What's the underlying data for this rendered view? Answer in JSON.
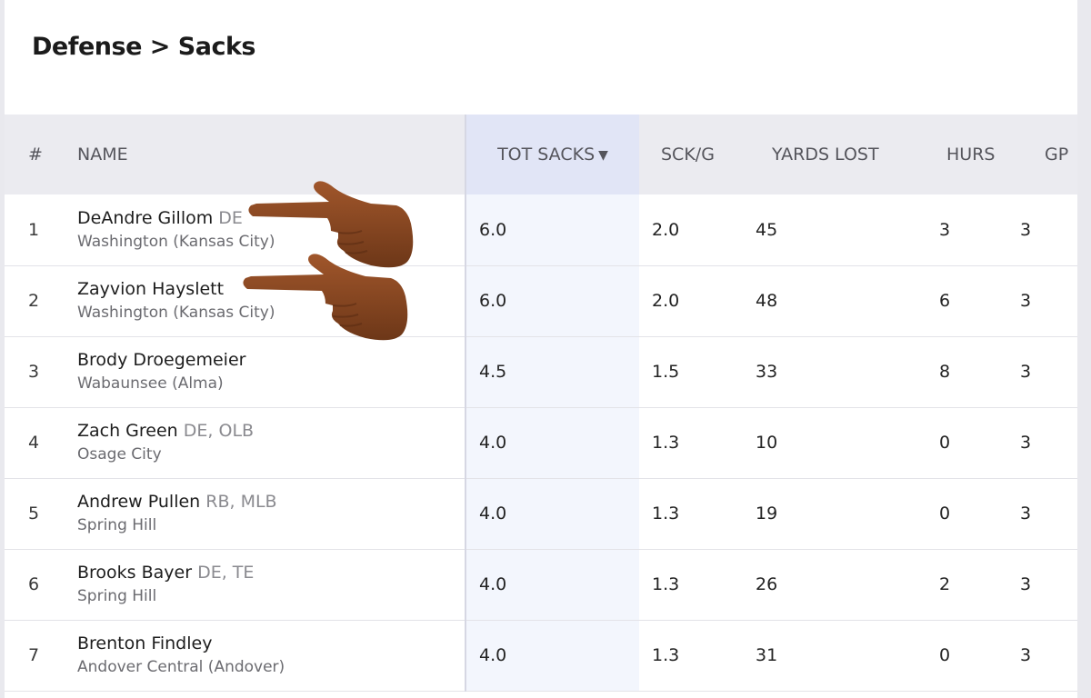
{
  "page": {
    "title": "Defense > Sacks"
  },
  "table": {
    "columns": {
      "rank": "#",
      "name": "NAME",
      "tot_sacks": "TOT SACKS",
      "sort_indicator": "▼",
      "sck_g": "SCK/G",
      "yards_lost": "YARDS LOST",
      "hurs": "HURS",
      "gp": "GP"
    },
    "rows": [
      {
        "rank": "1",
        "name": "DeAndre Gillom",
        "pos": "DE",
        "school": "Washington (Kansas City)",
        "tot_sacks": "6.0",
        "sck_g": "2.0",
        "yards_lost": "45",
        "hurs": "3",
        "gp": "3"
      },
      {
        "rank": "2",
        "name": "Zayvion Hayslett",
        "pos": "",
        "school": "Washington (Kansas City)",
        "tot_sacks": "6.0",
        "sck_g": "2.0",
        "yards_lost": "48",
        "hurs": "6",
        "gp": "3"
      },
      {
        "rank": "3",
        "name": "Brody Droegemeier",
        "pos": "",
        "school": "Wabaunsee (Alma)",
        "tot_sacks": "4.5",
        "sck_g": "1.5",
        "yards_lost": "33",
        "hurs": "8",
        "gp": "3"
      },
      {
        "rank": "4",
        "name": "Zach Green",
        "pos": "DE, OLB",
        "school": "Osage City",
        "tot_sacks": "4.0",
        "sck_g": "1.3",
        "yards_lost": "10",
        "hurs": "0",
        "gp": "3"
      },
      {
        "rank": "5",
        "name": "Andrew Pullen",
        "pos": "RB, MLB",
        "school": "Spring Hill",
        "tot_sacks": "4.0",
        "sck_g": "1.3",
        "yards_lost": "19",
        "hurs": "0",
        "gp": "3"
      },
      {
        "rank": "6",
        "name": "Brooks Bayer",
        "pos": "DE, TE",
        "school": "Spring Hill",
        "tot_sacks": "4.0",
        "sck_g": "1.3",
        "yards_lost": "26",
        "hurs": "2",
        "gp": "3"
      },
      {
        "rank": "7",
        "name": "Brenton Findley",
        "pos": "",
        "school": "Andover Central (Andover)",
        "tot_sacks": "4.0",
        "sck_g": "1.3",
        "yards_lost": "31",
        "hurs": "0",
        "gp": "3"
      }
    ]
  },
  "overlays": {
    "hand_icon": "pointing-left-hand-emoji",
    "hand_color": "#8a4a24"
  },
  "colors": {
    "header_bg": "#ebebf0",
    "sorted_header_bg": "#e1e5f6",
    "sorted_col_bg": "#f3f6fd"
  }
}
